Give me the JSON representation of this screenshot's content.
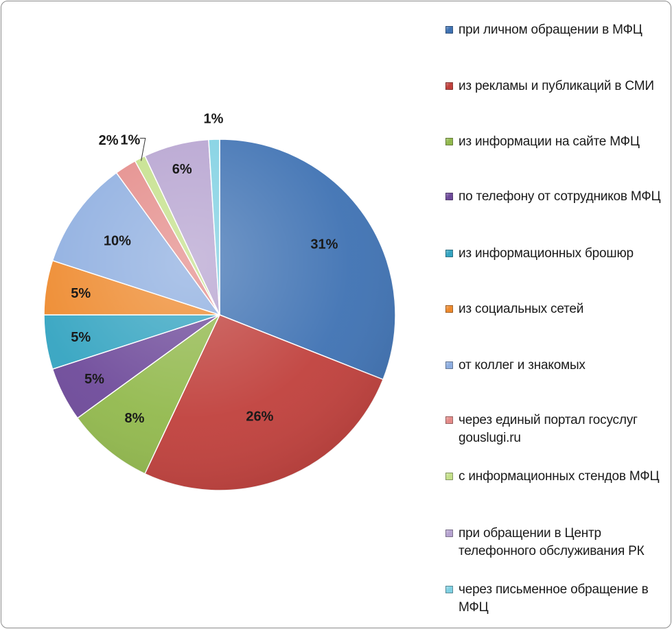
{
  "chart_data": {
    "type": "pie",
    "title": "",
    "legend_position": "right",
    "slices": [
      {
        "label": "при личном обращении в МФЦ",
        "value": 31,
        "value_label": "31%",
        "color": "#3f72b3"
      },
      {
        "label": "из рекламы и публикаций в СМИ",
        "value": 26,
        "value_label": "26%",
        "color": "#c0403c"
      },
      {
        "label": "из информации на сайте МФЦ",
        "value": 8,
        "value_label": "8%",
        "color": "#92b94d"
      },
      {
        "label": "по телефону от сотрудников МФЦ",
        "value": 5,
        "value_label": "5%",
        "color": "#6e4a9a"
      },
      {
        "label": "из информационных брошюр",
        "value": 5,
        "value_label": "5%",
        "color": "#34a4c1"
      },
      {
        "label": "из социальных сетей",
        "value": 5,
        "value_label": "5%",
        "color": "#ee8a2e"
      },
      {
        "label": "от коллег и знакомых",
        "value": 10,
        "value_label": "10%",
        "color": "#8eaee0"
      },
      {
        "label": "через единый портал госуслуг gouslugi.ru",
        "value": 2,
        "value_label": "2%",
        "color": "#e48b89"
      },
      {
        "label": "с информационных стендов МФЦ",
        "value": 1,
        "value_label": "1%",
        "color": "#c4e08a"
      },
      {
        "label": "при обращении в Центр телефонного обслуживания РК",
        "value": 6,
        "value_label": "6%",
        "color": "#b6a3d0"
      },
      {
        "label": "через письменное обращение в МФЦ",
        "value": 1,
        "value_label": "1%",
        "color": "#7fd0e2"
      }
    ]
  }
}
